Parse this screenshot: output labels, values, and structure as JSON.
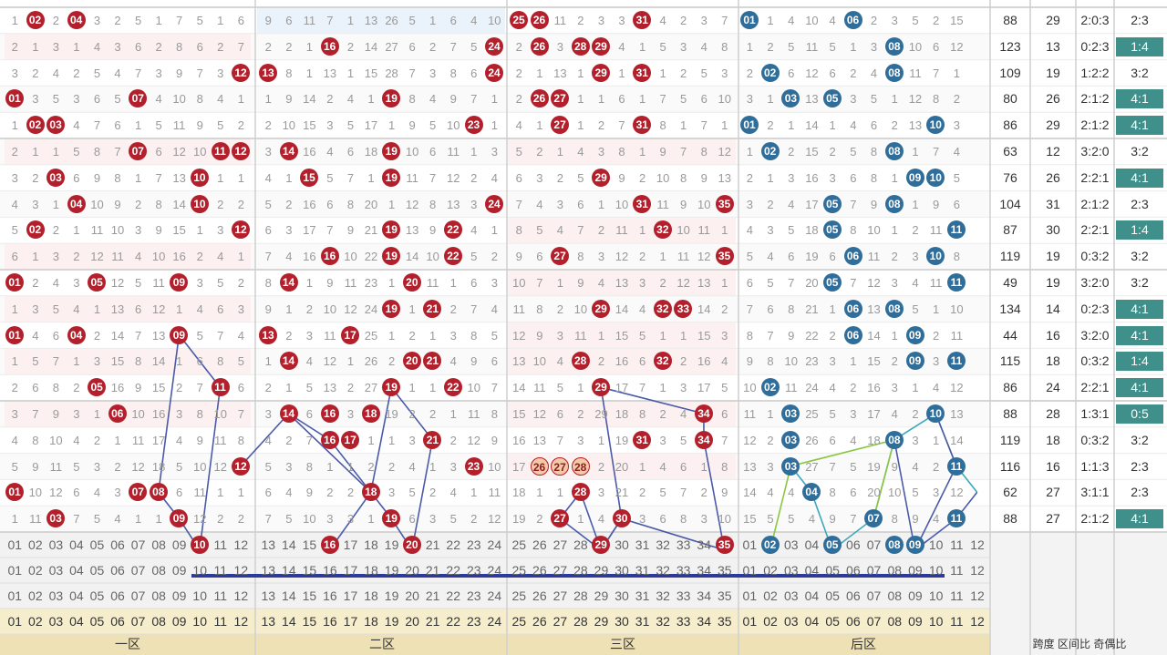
{
  "front_labels": [
    "01",
    "02",
    "03",
    "04",
    "05",
    "06",
    "07",
    "08",
    "09",
    "10",
    "11",
    "12",
    "13",
    "14",
    "15",
    "16",
    "17",
    "18",
    "19",
    "20",
    "21",
    "22",
    "23",
    "24",
    "25",
    "26",
    "27",
    "28",
    "29",
    "30",
    "31",
    "32",
    "33",
    "34",
    "35"
  ],
  "back_labels": [
    "01",
    "02",
    "03",
    "04",
    "05",
    "06",
    "07",
    "08",
    "09",
    "10",
    "11",
    "12"
  ],
  "zone_names": [
    "一区",
    "二区",
    "三区",
    "后区"
  ],
  "footer_right_text": "跨度 区间比 奇偶比",
  "rows": [
    {
      "f": [
        1,
        2,
        2,
        4,
        3,
        2,
        5,
        1,
        7,
        5,
        1,
        6,
        9,
        6,
        11,
        7,
        1,
        13,
        26,
        5,
        1,
        6,
        4,
        10,
        25,
        26,
        11,
        2,
        3,
        3,
        31,
        4,
        2,
        3,
        7
      ],
      "b": [
        1,
        1,
        4,
        10,
        4,
        6,
        2,
        3,
        5,
        2,
        15
      ],
      "span": "88",
      "sum": "29",
      "ratio": "2:0:3",
      "oe": "2:3",
      "oeb": false
    },
    {
      "f": [
        2,
        1,
        3,
        1,
        4,
        3,
        6,
        2,
        8,
        6,
        2,
        7,
        2,
        2,
        1,
        16,
        2,
        14,
        27,
        6,
        2,
        7,
        5,
        24,
        2,
        26,
        3,
        28,
        29,
        4,
        1,
        5,
        3,
        4,
        8
      ],
      "b": [
        1,
        2,
        5,
        11,
        5,
        1,
        3,
        8,
        10,
        6,
        12
      ],
      "span": "123",
      "sum": "13",
      "ratio": "0:2:3",
      "oe": "1:4",
      "oeb": true
    },
    {
      "f": [
        3,
        2,
        4,
        2,
        5,
        4,
        7,
        3,
        9,
        7,
        3,
        12,
        13,
        8,
        1,
        13,
        1,
        15,
        28,
        7,
        3,
        8,
        6,
        24,
        2,
        1,
        13,
        1,
        29,
        1,
        31,
        1,
        2,
        5,
        3
      ],
      "b": [
        2,
        2,
        6,
        12,
        6,
        2,
        4,
        8,
        11,
        7,
        1
      ],
      "span": "109",
      "sum": "19",
      "ratio": "1:2:2",
      "oe": "3:2",
      "oeb": false
    },
    {
      "f": [
        1,
        3,
        5,
        3,
        6,
        5,
        7,
        4,
        10,
        8,
        4,
        1,
        1,
        9,
        14,
        2,
        4,
        1,
        19,
        8,
        4,
        9,
        7,
        1,
        2,
        26,
        27,
        1,
        1,
        6,
        1,
        7,
        5,
        6,
        10
      ],
      "b": [
        3,
        1,
        3,
        13,
        5,
        3,
        5,
        1,
        12,
        8,
        2
      ],
      "span": "80",
      "sum": "26",
      "ratio": "2:1:2",
      "oe": "4:1",
      "oeb": true
    },
    {
      "f": [
        1,
        2,
        3,
        4,
        7,
        6,
        1,
        5,
        11,
        9,
        5,
        2,
        2,
        10,
        15,
        3,
        5,
        17,
        1,
        9,
        5,
        10,
        23,
        1,
        4,
        1,
        27,
        1,
        2,
        7,
        31,
        8,
        1,
        7,
        1
      ],
      "b": [
        1,
        2,
        1,
        14,
        1,
        4,
        6,
        2,
        13,
        10,
        3
      ],
      "span": "86",
      "sum": "29",
      "ratio": "2:1:2",
      "oe": "4:1",
      "oeb": true
    },
    {
      "f": [
        2,
        1,
        1,
        5,
        8,
        7,
        7,
        6,
        12,
        10,
        11,
        12,
        3,
        14,
        16,
        4,
        6,
        18,
        19,
        10,
        6,
        11,
        1,
        3,
        5,
        2,
        1,
        4,
        3,
        8,
        1,
        9,
        7,
        8,
        12
      ],
      "b": [
        1,
        2,
        2,
        15,
        2,
        5,
        8,
        14,
        1,
        7,
        4
      ],
      "span": "63",
      "sum": "12",
      "ratio": "3:2:0",
      "oe": "3:2",
      "oeb": false
    },
    {
      "f": [
        3,
        2,
        3,
        6,
        9,
        8,
        1,
        7,
        13,
        10,
        1,
        1,
        4,
        1,
        15,
        5,
        7,
        1,
        19,
        11,
        7,
        12,
        2,
        4,
        6,
        3,
        2,
        5,
        29,
        9,
        2,
        10,
        8,
        9,
        13
      ],
      "b": [
        2,
        1,
        3,
        16,
        3,
        6,
        8,
        1,
        9,
        10,
        5
      ],
      "span": "76",
      "sum": "26",
      "ratio": "2:2:1",
      "oe": "4:1",
      "oeb": true
    },
    {
      "f": [
        4,
        3,
        1,
        4,
        10,
        9,
        2,
        8,
        14,
        10,
        2,
        2,
        5,
        2,
        16,
        6,
        8,
        20,
        1,
        12,
        8,
        13,
        3,
        24,
        7,
        4,
        3,
        6,
        1,
        10,
        31,
        11,
        9,
        10,
        35
      ],
      "b": [
        3,
        2,
        4,
        17,
        5,
        7,
        9,
        8,
        1,
        9,
        6
      ],
      "span": "104",
      "sum": "31",
      "ratio": "2:1:2",
      "oe": "2:3",
      "oeb": false
    },
    {
      "f": [
        5,
        2,
        2,
        1,
        11,
        10,
        3,
        9,
        15,
        1,
        3,
        12,
        6,
        3,
        17,
        7,
        9,
        21,
        19,
        13,
        9,
        22,
        4,
        1,
        8,
        5,
        4,
        7,
        2,
        11,
        1,
        32,
        10,
        11,
        1
      ],
      "b": [
        4,
        3,
        5,
        18,
        5,
        8,
        10,
        1,
        2,
        11,
        7
      ],
      "span": "87",
      "sum": "30",
      "ratio": "2:2:1",
      "oe": "1:4",
      "oeb": true
    },
    {
      "f": [
        6,
        1,
        3,
        2,
        12,
        11,
        4,
        10,
        16,
        2,
        4,
        1,
        7,
        4,
        16,
        8,
        10,
        22,
        19,
        14,
        10,
        22,
        5,
        2,
        9,
        6,
        27,
        8,
        3,
        12,
        2,
        1,
        11,
        12,
        35
      ],
      "b": [
        5,
        4,
        6,
        19,
        6,
        6,
        11,
        2,
        3,
        10,
        8
      ],
      "span": "119",
      "sum": "19",
      "ratio": "0:3:2",
      "oe": "3:2",
      "oeb": false
    },
    {
      "f": [
        1,
        2,
        4,
        3,
        5,
        12,
        5,
        11,
        9,
        3,
        5,
        2,
        8,
        14,
        1,
        9,
        11,
        23,
        1,
        20,
        11,
        1,
        6,
        3,
        10,
        7,
        1,
        9,
        4,
        13,
        3,
        2,
        12,
        13,
        1
      ],
      "b": [
        6,
        5,
        7,
        20,
        5,
        7,
        12,
        3,
        4,
        11,
        9
      ],
      "span": "49",
      "sum": "19",
      "ratio": "3:2:0",
      "oe": "3:2",
      "oeb": false
    },
    {
      "f": [
        1,
        3,
        5,
        4,
        1,
        13,
        6,
        12,
        1,
        4,
        6,
        3,
        9,
        1,
        2,
        10,
        12,
        24,
        19,
        1,
        21,
        2,
        7,
        4,
        11,
        8,
        2,
        10,
        29,
        14,
        4,
        32,
        33,
        14,
        2
      ],
      "b": [
        7,
        6,
        8,
        21,
        1,
        6,
        13,
        8,
        5,
        1,
        10
      ],
      "span": "134",
      "sum": "14",
      "ratio": "0:2:3",
      "oe": "4:1",
      "oeb": true
    },
    {
      "f": [
        1,
        4,
        6,
        4,
        2,
        14,
        7,
        13,
        9,
        5,
        7,
        4,
        13,
        2,
        3,
        11,
        17,
        25,
        1,
        2,
        1,
        3,
        8,
        5,
        12,
        9,
        3,
        11,
        1,
        15,
        5,
        1,
        1,
        15,
        3
      ],
      "b": [
        8,
        7,
        9,
        22,
        2,
        6,
        14,
        1,
        9,
        2,
        11
      ],
      "span": "44",
      "sum": "16",
      "ratio": "3:2:0",
      "oe": "4:1",
      "oeb": true
    },
    {
      "f": [
        1,
        5,
        7,
        1,
        3,
        15,
        8,
        14,
        1,
        6,
        8,
        5,
        1,
        14,
        4,
        12,
        1,
        26,
        2,
        20,
        21,
        4,
        9,
        6,
        13,
        10,
        4,
        28,
        2,
        16,
        6,
        32,
        2,
        16,
        4
      ],
      "b": [
        9,
        8,
        10,
        23,
        3,
        1,
        15,
        2,
        9,
        3,
        11
      ],
      "span": "115",
      "sum": "18",
      "ratio": "0:3:2",
      "oe": "1:4",
      "oeb": true
    },
    {
      "f": [
        2,
        6,
        8,
        2,
        5,
        16,
        9,
        15,
        2,
        7,
        9,
        6,
        2,
        1,
        5,
        13,
        2,
        27,
        19,
        1,
        1,
        22,
        10,
        7,
        14,
        11,
        5,
        1,
        29,
        17,
        7,
        1,
        3,
        17,
        5
      ],
      "b": [
        10,
        2,
        11,
        24,
        4,
        2,
        16,
        3,
        1,
        4,
        12
      ],
      "span": "86",
      "sum": "24",
      "ratio": "2:2:1",
      "oe": "4:1",
      "oeb": true
    },
    {
      "f": [
        3,
        7,
        9,
        3,
        1,
        6,
        10,
        16,
        3,
        8,
        10,
        7,
        3,
        14,
        6,
        16,
        3,
        18,
        19,
        2,
        2,
        1,
        11,
        8,
        15,
        12,
        6,
        2,
        29,
        18,
        8,
        2,
        4,
        34,
        6
      ],
      "b": [
        11,
        1,
        3,
        25,
        5,
        3,
        17,
        4,
        2,
        10,
        13
      ],
      "span": "88",
      "sum": "28",
      "ratio": "1:3:1",
      "oe": "0:5",
      "oeb": true
    },
    {
      "f": [
        4,
        8,
        10,
        4,
        2,
        1,
        11,
        17,
        4,
        9,
        11,
        8,
        4,
        2,
        7,
        16,
        17,
        1,
        1,
        3,
        21,
        2,
        12,
        9,
        16,
        13,
        7,
        3,
        1,
        19,
        31,
        3,
        5,
        34,
        7
      ],
      "b": [
        12,
        2,
        3,
        26,
        6,
        4,
        18,
        8,
        3,
        1,
        14
      ],
      "span": "119",
      "sum": "18",
      "ratio": "0:3:2",
      "oe": "3:2",
      "oeb": false
    },
    {
      "f": [
        5,
        9,
        11,
        5,
        3,
        2,
        12,
        18,
        5,
        10,
        12,
        12,
        5,
        3,
        8,
        1,
        1,
        2,
        2,
        4,
        1,
        3,
        23,
        10,
        17,
        26,
        27,
        28,
        2,
        20,
        1,
        4,
        6,
        1,
        8
      ],
      "b": [
        13,
        3,
        3,
        27,
        7,
        5,
        19,
        9,
        4,
        2,
        11
      ],
      "span": "116",
      "sum": "16",
      "ratio": "1:1:3",
      "oe": "2:3",
      "oeb": false
    },
    {
      "f": [
        1,
        10,
        12,
        6,
        4,
        3,
        7,
        8,
        6,
        11,
        1,
        1,
        6,
        4,
        9,
        2,
        2,
        18,
        3,
        5,
        2,
        4,
        1,
        11,
        18,
        1,
        1,
        28,
        3,
        21,
        2,
        5,
        7,
        2,
        9
      ],
      "b": [
        14,
        4,
        4,
        28,
        8,
        6,
        20,
        10,
        5,
        3,
        12
      ],
      "span": "62",
      "sum": "27",
      "ratio": "3:1:1",
      "oe": "2:3",
      "oeb": false
    },
    {
      "f": [
        1,
        11,
        3,
        7,
        5,
        4,
        1,
        1,
        9,
        12,
        2,
        2,
        7,
        5,
        10,
        3,
        3,
        1,
        19,
        6,
        3,
        5,
        2,
        12,
        19,
        2,
        27,
        1,
        4,
        30,
        3,
        6,
        8,
        3,
        10
      ],
      "b": [
        15,
        5,
        5,
        4,
        9,
        7,
        21,
        8,
        9,
        4,
        11
      ],
      "span": "88",
      "sum": "27",
      "ratio": "2:1:2",
      "oe": "4:1",
      "oeb": true
    }
  ],
  "hits": [
    [
      2,
      4,
      25,
      26,
      31
    ],
    [
      1,
      6
    ],
    [
      16,
      24,
      26,
      28,
      29
    ],
    [
      8,
      12
    ],
    [
      12,
      13,
      24,
      29,
      31
    ],
    [
      2,
      8
    ],
    [
      1,
      7,
      19,
      26,
      27
    ],
    [
      3,
      5
    ],
    [
      2,
      3,
      23,
      27,
      31
    ],
    [
      1,
      10
    ],
    [
      7,
      11,
      12,
      14,
      19
    ],
    [
      2,
      8
    ],
    [
      3,
      10,
      15,
      19,
      29
    ],
    [
      9,
      10
    ],
    [
      4,
      10,
      24,
      31,
      35
    ],
    [
      5,
      8
    ],
    [
      2,
      12,
      19,
      22,
      32
    ],
    [
      5,
      11
    ],
    [
      16,
      19,
      22,
      27,
      35
    ],
    [
      6,
      10
    ],
    [
      1,
      5,
      9,
      14,
      20
    ],
    [
      5,
      11
    ],
    [
      19,
      21,
      29,
      32,
      33
    ],
    [
      6,
      8
    ],
    [
      1,
      4,
      9,
      13,
      17
    ],
    [
      6,
      9
    ],
    [
      14,
      20,
      21,
      28,
      32
    ],
    [
      9,
      11
    ],
    [
      5,
      11,
      19,
      22,
      29
    ],
    [
      2,
      12
    ],
    [
      6,
      14,
      16,
      18,
      34
    ],
    [
      3,
      10
    ],
    [
      16,
      17,
      21,
      31,
      34
    ],
    [
      3,
      8
    ],
    [
      12,
      23,
      26,
      27,
      28
    ],
    [
      3,
      11
    ],
    [
      1,
      7,
      8,
      18,
      28
    ],
    [
      4,
      12
    ],
    [
      3,
      9,
      19,
      27,
      30
    ],
    [
      7,
      11
    ]
  ],
  "select_row_hits": [
    10,
    16,
    20,
    29,
    35,
    2,
    5,
    8,
    9
  ],
  "stat_headers": [
    "跨度",
    "区间比",
    "奇偶比"
  ]
}
